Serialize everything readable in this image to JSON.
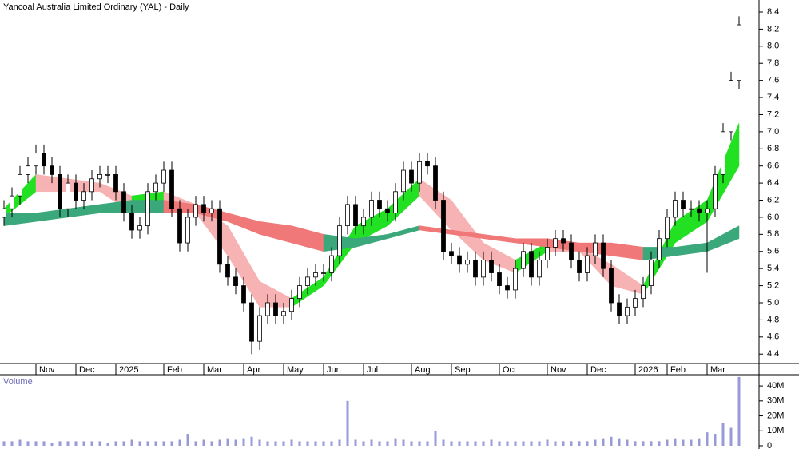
{
  "chart_data": {
    "type": "candlestick",
    "title": "Yancoal Australia Limited Ordinary (YAL) - Daily",
    "open": [
      6.0,
      6.1,
      6.25,
      6.5,
      6.6,
      6.75,
      6.6,
      6.5,
      6.1,
      6.4,
      6.2,
      6.3,
      6.45,
      6.5,
      6.5,
      6.3,
      6.05,
      5.85,
      5.9,
      6.3,
      6.4,
      6.55,
      6.1,
      5.7,
      6.0,
      6.15,
      6.05,
      6.1,
      5.45,
      5.3,
      5.2,
      5.0,
      4.55,
      4.85,
      5.0,
      4.85,
      4.9,
      5.05,
      5.2,
      5.3,
      5.35,
      5.35,
      5.55,
      5.9,
      6.15,
      5.9,
      6.0,
      6.2,
      6.1,
      6.05,
      6.3,
      6.55,
      6.4,
      6.65,
      6.6,
      6.2,
      5.6,
      5.55,
      5.45,
      5.5,
      5.3,
      5.5,
      5.35,
      5.2,
      5.15,
      5.4,
      5.6,
      5.3,
      5.5,
      5.65,
      5.75,
      5.7,
      5.5,
      5.35,
      5.55,
      5.7,
      5.4,
      5.0,
      4.85,
      4.95,
      5.05,
      5.2,
      5.5,
      5.75,
      6.0,
      6.2,
      6.1,
      6.1,
      6.05,
      6.1,
      6.5,
      7.0,
      7.6
    ],
    "high": [
      6.2,
      6.35,
      6.6,
      6.7,
      6.85,
      6.85,
      6.7,
      6.6,
      6.5,
      6.5,
      6.4,
      6.55,
      6.6,
      6.6,
      6.6,
      6.4,
      6.15,
      6.0,
      6.4,
      6.5,
      6.65,
      6.65,
      6.2,
      6.1,
      6.25,
      6.25,
      6.2,
      6.2,
      5.55,
      5.4,
      5.3,
      5.1,
      4.95,
      5.1,
      5.1,
      5.0,
      5.15,
      5.3,
      5.4,
      5.45,
      5.45,
      5.65,
      6.0,
      6.25,
      6.25,
      6.1,
      6.3,
      6.3,
      6.2,
      6.4,
      6.65,
      6.65,
      6.75,
      6.75,
      6.7,
      6.3,
      5.7,
      5.65,
      5.6,
      5.6,
      5.6,
      5.6,
      5.45,
      5.3,
      5.5,
      5.7,
      5.7,
      5.6,
      5.75,
      5.85,
      5.85,
      5.8,
      5.6,
      5.65,
      5.8,
      5.8,
      5.5,
      5.1,
      5.05,
      5.15,
      5.3,
      5.6,
      5.85,
      6.1,
      6.3,
      6.3,
      6.2,
      6.2,
      6.2,
      6.6,
      7.1,
      7.7,
      8.35
    ],
    "low": [
      5.9,
      6.0,
      6.15,
      6.4,
      6.5,
      6.5,
      6.4,
      6.0,
      6.0,
      6.1,
      6.1,
      6.2,
      6.35,
      6.4,
      6.2,
      5.95,
      5.75,
      5.75,
      5.8,
      6.2,
      6.3,
      6.0,
      5.6,
      5.6,
      5.9,
      5.95,
      5.95,
      5.35,
      5.2,
      5.1,
      4.9,
      4.4,
      4.45,
      4.75,
      4.75,
      4.75,
      4.8,
      4.95,
      5.1,
      5.2,
      5.25,
      5.25,
      5.45,
      5.8,
      5.8,
      5.8,
      5.9,
      6.0,
      5.95,
      5.95,
      6.2,
      6.3,
      6.3,
      6.5,
      6.1,
      5.5,
      5.45,
      5.35,
      5.35,
      5.2,
      5.2,
      5.25,
      5.1,
      5.05,
      5.05,
      5.3,
      5.2,
      5.2,
      5.4,
      5.55,
      5.6,
      5.4,
      5.25,
      5.25,
      5.45,
      5.3,
      4.9,
      4.75,
      4.75,
      4.85,
      4.95,
      5.1,
      5.4,
      5.65,
      5.9,
      6.0,
      6.0,
      5.95,
      5.35,
      6.0,
      6.4,
      6.9,
      7.5
    ],
    "close": [
      6.1,
      6.25,
      6.5,
      6.6,
      6.75,
      6.6,
      6.5,
      6.1,
      6.4,
      6.2,
      6.3,
      6.45,
      6.5,
      6.5,
      6.3,
      6.05,
      5.85,
      5.9,
      6.3,
      6.4,
      6.55,
      6.1,
      5.7,
      6.0,
      6.15,
      6.05,
      6.1,
      5.45,
      5.3,
      5.2,
      5.0,
      4.55,
      4.85,
      5.0,
      4.85,
      4.9,
      5.05,
      5.2,
      5.3,
      5.35,
      5.35,
      5.55,
      5.9,
      6.15,
      5.9,
      6.0,
      6.2,
      6.1,
      6.05,
      6.3,
      6.55,
      6.4,
      6.65,
      6.6,
      6.2,
      5.6,
      5.55,
      5.45,
      5.5,
      5.3,
      5.5,
      5.35,
      5.2,
      5.15,
      5.4,
      5.6,
      5.3,
      5.5,
      5.65,
      5.75,
      5.7,
      5.5,
      5.35,
      5.55,
      5.7,
      5.4,
      5.0,
      4.85,
      4.95,
      5.05,
      5.2,
      5.5,
      5.75,
      6.0,
      6.2,
      6.1,
      6.1,
      6.05,
      6.1,
      6.5,
      7.0,
      7.6,
      8.25
    ],
    "up_color": "#ffffff",
    "down_color": "#000000",
    "candle_edge": "#000000",
    "ylim": [
      4.29,
      8.54
    ],
    "yticks": [
      4.4,
      4.6,
      4.8,
      {
        "value": 5,
        "label": "5.0"
      },
      5.2,
      5.4,
      5.6,
      5.8,
      {
        "value": 6,
        "label": "6.0"
      },
      6.2,
      6.4,
      6.6,
      6.8,
      {
        "value": 7,
        "label": "7.0"
      },
      7.2,
      7.4,
      7.6,
      7.8,
      {
        "value": 8,
        "label": "8.0"
      },
      8.2,
      8.4
    ],
    "xlim": [
      -0.5,
      94.5
    ],
    "xticks": [
      {
        "value": 4,
        "label": "Nov"
      },
      {
        "value": 9,
        "label": "Dec"
      },
      {
        "value": 14,
        "label": "2025"
      },
      {
        "value": 20,
        "label": "Feb"
      },
      {
        "value": 25,
        "label": "Mar"
      },
      {
        "value": 30,
        "label": "Apr"
      },
      {
        "value": 35,
        "label": "May"
      },
      {
        "value": 40,
        "label": "Jun"
      },
      {
        "value": 45,
        "label": "Jul"
      },
      {
        "value": 51,
        "label": "Aug"
      },
      {
        "value": 56,
        "label": "Sep"
      },
      {
        "value": 62,
        "label": "Oct"
      },
      {
        "value": 68,
        "label": "Nov"
      },
      {
        "value": 73,
        "label": "Dec"
      },
      {
        "value": 79,
        "label": "2026"
      },
      {
        "value": 83,
        "label": "Feb"
      },
      {
        "value": 88,
        "label": "Mar"
      }
    ],
    "ribbons": [
      {
        "x": [
          0,
          4,
          8,
          12,
          16,
          20,
          24,
          28,
          32,
          36,
          40,
          44,
          48,
          52,
          56,
          60,
          64,
          68,
          72,
          76,
          80,
          84,
          88,
          92
        ],
        "upper": [
          6.1,
          6.5,
          6.45,
          6.4,
          6.25,
          6.3,
          6.15,
          5.9,
          5.25,
          5.05,
          5.3,
          5.9,
          6.1,
          6.45,
          6.2,
          5.7,
          5.5,
          5.7,
          5.65,
          5.45,
          5.2,
          5.95,
          6.2,
          7.1
        ],
        "lower": [
          6.0,
          6.3,
          6.3,
          6.3,
          6.05,
          6.1,
          6.05,
          5.55,
          4.95,
          4.95,
          5.2,
          5.7,
          5.9,
          6.25,
          5.85,
          5.5,
          5.35,
          5.6,
          5.6,
          5.2,
          5.1,
          5.7,
          5.95,
          6.6
        ],
        "up_color": "#22e022",
        "down_color": "#f7b3b3"
      },
      {
        "x": [
          0,
          4,
          8,
          12,
          16,
          20,
          24,
          28,
          32,
          36,
          40,
          44,
          48,
          52,
          56,
          60,
          64,
          68,
          72,
          76,
          80,
          84,
          88,
          92
        ],
        "upper": [
          6.05,
          6.05,
          6.1,
          6.15,
          6.2,
          6.2,
          6.15,
          6.05,
          5.95,
          5.9,
          5.8,
          5.75,
          5.8,
          5.9,
          5.85,
          5.8,
          5.75,
          5.75,
          5.7,
          5.7,
          5.65,
          5.65,
          5.7,
          5.9
        ],
        "lower": [
          5.9,
          5.95,
          6.0,
          6.05,
          6.05,
          6.05,
          6.05,
          5.95,
          5.8,
          5.7,
          5.6,
          5.65,
          5.75,
          5.85,
          5.8,
          5.75,
          5.7,
          5.65,
          5.6,
          5.55,
          5.5,
          5.55,
          5.6,
          5.75
        ],
        "up_color": "#3aa87a",
        "down_color": "#f07878"
      }
    ],
    "volume": {
      "label": "Volume",
      "color": "#9a9ad8",
      "values": [
        3,
        3,
        4,
        3,
        3,
        3,
        2,
        3,
        3,
        3,
        3,
        3,
        3,
        2,
        3,
        3,
        4,
        3,
        3,
        3,
        3,
        3,
        4,
        8,
        3,
        4,
        3,
        4,
        5,
        4,
        5,
        6,
        4,
        3,
        3,
        3,
        4,
        3,
        3,
        3,
        3,
        3,
        4,
        30,
        4,
        3,
        4,
        3,
        3,
        5,
        4,
        3,
        3,
        3,
        10,
        4,
        3,
        3,
        3,
        3,
        3,
        4,
        3,
        3,
        3,
        3,
        3,
        3,
        4,
        3,
        3,
        3,
        3,
        3,
        4,
        5,
        6,
        5,
        4,
        3,
        3,
        3,
        3,
        4,
        5,
        4,
        4,
        5,
        9,
        8,
        15,
        12,
        46
      ],
      "ylim": [
        0,
        47
      ],
      "yticks": [
        0,
        {
          "value": 10,
          "label": "10M"
        },
        {
          "value": 20,
          "label": "20M"
        },
        {
          "value": 30,
          "label": "30M"
        },
        {
          "value": 40,
          "label": "40M"
        }
      ]
    }
  }
}
